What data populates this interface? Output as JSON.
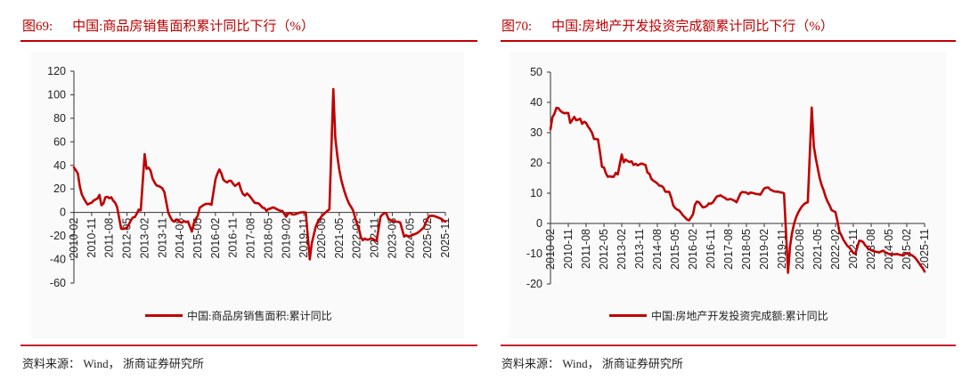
{
  "figures": [
    {
      "number": "图69:",
      "title": "中国:商品房销售面积累计同比下行（%）",
      "legend": "中国:商品房销售面积:累计同比",
      "source": "资料来源：  Wind，  浙商证券研究所"
    },
    {
      "number": "图70:",
      "title": "中国:房地产开发投资完成额累计同比下行（%）",
      "legend": "中国:房地产开发投资完成额:累计同比",
      "source": "资料来源：  Wind，  浙商证券研究所"
    }
  ],
  "colors": {
    "accent": "#c00000",
    "line": "#c00000",
    "axis": "#333333",
    "panel": "#fafafa"
  },
  "chart_data": [
    {
      "type": "line",
      "title": "中国:商品房销售面积累计同比下行（%）",
      "xlabel": "",
      "ylabel": "%",
      "ylim": [
        -60,
        120
      ],
      "yticks": [
        120,
        100,
        80,
        60,
        40,
        20,
        0,
        -20,
        -40,
        -60
      ],
      "grid": false,
      "legend_position": "bottom",
      "categories": [
        "2010-02",
        "2010-11",
        "2011-08",
        "2012-05",
        "2013-02",
        "2013-11",
        "2014-08",
        "2015-05",
        "2016-02",
        "2016-11",
        "2017-08",
        "2018-05",
        "2019-02",
        "2019-11",
        "2020-08",
        "2021-05",
        "2022-02",
        "2022-11",
        "2023-08",
        "2024-05",
        "2025-02",
        "2025-11"
      ],
      "x": [
        "2010-02",
        "2010-03",
        "2010-04",
        "2010-05",
        "2010-06",
        "2010-07",
        "2010-08",
        "2010-09",
        "2010-10",
        "2010-11",
        "2010-12",
        "2011-02",
        "2011-03",
        "2011-04",
        "2011-05",
        "2011-06",
        "2011-07",
        "2011-08",
        "2011-09",
        "2011-10",
        "2011-11",
        "2011-12",
        "2012-02",
        "2012-03",
        "2012-04",
        "2012-05",
        "2012-06",
        "2012-07",
        "2012-08",
        "2012-09",
        "2012-10",
        "2012-11",
        "2012-12",
        "2013-02",
        "2013-03",
        "2013-04",
        "2013-05",
        "2013-06",
        "2013-07",
        "2013-08",
        "2013-09",
        "2013-10",
        "2013-11",
        "2013-12",
        "2014-02",
        "2014-03",
        "2014-04",
        "2014-05",
        "2014-06",
        "2014-07",
        "2014-08",
        "2014-09",
        "2014-10",
        "2014-11",
        "2014-12",
        "2015-02",
        "2015-03",
        "2015-04",
        "2015-05",
        "2015-06",
        "2015-07",
        "2015-08",
        "2015-09",
        "2015-10",
        "2015-11",
        "2015-12",
        "2016-02",
        "2016-03",
        "2016-04",
        "2016-05",
        "2016-06",
        "2016-07",
        "2016-08",
        "2016-09",
        "2016-10",
        "2016-11",
        "2016-12",
        "2017-02",
        "2017-03",
        "2017-04",
        "2017-05",
        "2017-06",
        "2017-07",
        "2017-08",
        "2017-09",
        "2017-10",
        "2017-11",
        "2017-12",
        "2018-02",
        "2018-03",
        "2018-04",
        "2018-05",
        "2018-06",
        "2018-07",
        "2018-08",
        "2018-09",
        "2018-10",
        "2018-11",
        "2018-12",
        "2019-02",
        "2019-03",
        "2019-04",
        "2019-05",
        "2019-06",
        "2019-07",
        "2019-08",
        "2019-09",
        "2019-10",
        "2019-11",
        "2019-12",
        "2020-02",
        "2020-03",
        "2020-04",
        "2020-05",
        "2020-06",
        "2020-07",
        "2020-08",
        "2020-09",
        "2020-10",
        "2020-11",
        "2020-12",
        "2021-02",
        "2021-03",
        "2021-04",
        "2021-05",
        "2021-06",
        "2021-07",
        "2021-08",
        "2021-09",
        "2021-10",
        "2021-11",
        "2021-12",
        "2022-02",
        "2022-03",
        "2022-04",
        "2022-05",
        "2022-06",
        "2022-07",
        "2022-08",
        "2022-09",
        "2022-10",
        "2022-11",
        "2022-12",
        "2023-02",
        "2023-03",
        "2023-04",
        "2023-05",
        "2023-06",
        "2023-07",
        "2023-08",
        "2023-09",
        "2023-10",
        "2023-11",
        "2023-12",
        "2024-02",
        "2024-03",
        "2024-04",
        "2024-05",
        "2024-06",
        "2024-07",
        "2024-08",
        "2024-09",
        "2024-10",
        "2024-11",
        "2024-12",
        "2025-02",
        "2025-03",
        "2025-04",
        "2025-05",
        "2025-06",
        "2025-07",
        "2025-08",
        "2025-09",
        "2025-10",
        "2025-11"
      ],
      "series": [
        {
          "name": "中国:商品房销售面积:累计同比",
          "values": [
            38.2,
            35.8,
            33.0,
            22.2,
            15.4,
            12.1,
            9.1,
            6.7,
            7.7,
            8.3,
            10.1,
            11.9,
            14.9,
            6.1,
            7.6,
            12.9,
            13.3,
            12.1,
            12.9,
            10.0,
            8.2,
            4.4,
            -13.8,
            -14.0,
            -13.5,
            -12.9,
            -10.0,
            -6.6,
            -4.3,
            -3.9,
            -1.0,
            2.4,
            1.8,
            49.5,
            37.1,
            38.0,
            35.6,
            28.7,
            25.5,
            23.0,
            22.4,
            21.6,
            20.5,
            17.3,
            -0.1,
            -3.8,
            -6.7,
            -7.8,
            -6.0,
            -6.7,
            -8.3,
            -8.6,
            -7.3,
            -8.2,
            -7.6,
            -16.3,
            -9.2,
            -5.4,
            -2.8,
            3.9,
            5.2,
            6.3,
            7.2,
            7.2,
            7.4,
            6.5,
            28.2,
            33.1,
            36.5,
            33.2,
            27.9,
            26.4,
            25.5,
            26.9,
            26.8,
            24.3,
            22.5,
            25.1,
            19.5,
            15.7,
            14.3,
            16.1,
            14.7,
            12.7,
            10.3,
            8.2,
            7.9,
            7.7,
            4.1,
            3.6,
            1.3,
            2.9,
            3.3,
            4.2,
            4.0,
            2.9,
            2.2,
            1.4,
            1.3,
            -3.6,
            -0.9,
            -0.3,
            -1.6,
            -1.8,
            -1.3,
            -0.6,
            -0.1,
            0.1,
            0.2,
            -0.1,
            -39.9,
            -26.3,
            -19.3,
            -12.3,
            -8.4,
            -5.8,
            -3.3,
            -1.8,
            0.0,
            1.3,
            2.6,
            104.9,
            63.8,
            48.1,
            36.3,
            27.7,
            21.5,
            15.9,
            11.3,
            7.5,
            4.8,
            1.9,
            -9.6,
            -13.8,
            -20.9,
            -23.6,
            -22.2,
            -23.1,
            -23.0,
            -22.2,
            -22.3,
            -23.3,
            -24.3,
            -3.6,
            -1.8,
            -0.4,
            -0.9,
            -5.3,
            -6.5,
            -7.1,
            -7.5,
            -7.8,
            -8.0,
            -8.5,
            -20.5,
            -19.4,
            -20.2,
            -20.3,
            -19.0,
            -18.6,
            -18.0,
            -17.1,
            -15.8,
            -14.3,
            -12.9,
            -5.1,
            -3.0,
            -2.8,
            -2.9,
            -3.5,
            -4.0,
            -4.7,
            -5.5,
            -6.8,
            -7.8
          ]
        }
      ]
    },
    {
      "type": "line",
      "title": "中国:房地产开发投资完成额累计同比下行（%）",
      "xlabel": "",
      "ylabel": "%",
      "ylim": [
        -20,
        50
      ],
      "yticks": [
        50,
        40,
        30,
        20,
        10,
        0,
        -10,
        -20
      ],
      "grid": false,
      "legend_position": "bottom",
      "categories": [
        "2010-02",
        "2010-11",
        "2011-08",
        "2012-05",
        "2013-02",
        "2013-11",
        "2014-08",
        "2015-05",
        "2016-02",
        "2016-11",
        "2017-08",
        "2018-05",
        "2019-02",
        "2019-11",
        "2020-08",
        "2021-05",
        "2022-02",
        "2022-11",
        "2023-08",
        "2024-05",
        "2025-02",
        "2025-11"
      ],
      "x": [
        "2010-02",
        "2010-03",
        "2010-04",
        "2010-05",
        "2010-06",
        "2010-07",
        "2010-08",
        "2010-09",
        "2010-10",
        "2010-11",
        "2010-12",
        "2011-02",
        "2011-03",
        "2011-04",
        "2011-05",
        "2011-06",
        "2011-07",
        "2011-08",
        "2011-09",
        "2011-10",
        "2011-11",
        "2011-12",
        "2012-02",
        "2012-03",
        "2012-04",
        "2012-05",
        "2012-06",
        "2012-07",
        "2012-08",
        "2012-09",
        "2012-10",
        "2012-11",
        "2012-12",
        "2013-02",
        "2013-03",
        "2013-04",
        "2013-05",
        "2013-06",
        "2013-07",
        "2013-08",
        "2013-09",
        "2013-10",
        "2013-11",
        "2013-12",
        "2014-02",
        "2014-03",
        "2014-04",
        "2014-05",
        "2014-06",
        "2014-07",
        "2014-08",
        "2014-09",
        "2014-10",
        "2014-11",
        "2014-12",
        "2015-02",
        "2015-03",
        "2015-04",
        "2015-05",
        "2015-06",
        "2015-07",
        "2015-08",
        "2015-09",
        "2015-10",
        "2015-11",
        "2015-12",
        "2016-02",
        "2016-03",
        "2016-04",
        "2016-05",
        "2016-06",
        "2016-07",
        "2016-08",
        "2016-09",
        "2016-10",
        "2016-11",
        "2016-12",
        "2017-02",
        "2017-03",
        "2017-04",
        "2017-05",
        "2017-06",
        "2017-07",
        "2017-08",
        "2017-09",
        "2017-10",
        "2017-11",
        "2017-12",
        "2018-02",
        "2018-03",
        "2018-04",
        "2018-05",
        "2018-06",
        "2018-07",
        "2018-08",
        "2018-09",
        "2018-10",
        "2018-11",
        "2018-12",
        "2019-02",
        "2019-03",
        "2019-04",
        "2019-05",
        "2019-06",
        "2019-07",
        "2019-08",
        "2019-09",
        "2019-10",
        "2019-11",
        "2019-12",
        "2020-02",
        "2020-03",
        "2020-04",
        "2020-05",
        "2020-06",
        "2020-07",
        "2020-08",
        "2020-09",
        "2020-10",
        "2020-11",
        "2020-12",
        "2021-02",
        "2021-03",
        "2021-04",
        "2021-05",
        "2021-06",
        "2021-07",
        "2021-08",
        "2021-09",
        "2021-10",
        "2021-11",
        "2021-12",
        "2022-02",
        "2022-03",
        "2022-04",
        "2022-05",
        "2022-06",
        "2022-07",
        "2022-08",
        "2022-09",
        "2022-10",
        "2022-11",
        "2022-12",
        "2023-02",
        "2023-03",
        "2023-04",
        "2023-05",
        "2023-06",
        "2023-07",
        "2023-08",
        "2023-09",
        "2023-10",
        "2023-11",
        "2023-12",
        "2024-02",
        "2024-03",
        "2024-04",
        "2024-05",
        "2024-06",
        "2024-07",
        "2024-08",
        "2024-09",
        "2024-10",
        "2024-11",
        "2024-12",
        "2025-02",
        "2025-03",
        "2025-04",
        "2025-05",
        "2025-06",
        "2025-07",
        "2025-08",
        "2025-09",
        "2025-10",
        "2025-11"
      ],
      "series": [
        {
          "name": "中国:房地产开发投资完成额:累计同比",
          "values": [
            31.1,
            35.1,
            36.2,
            38.2,
            38.1,
            37.2,
            36.7,
            36.4,
            36.5,
            36.5,
            33.2,
            35.2,
            34.1,
            34.3,
            34.6,
            32.9,
            33.6,
            33.2,
            32.0,
            31.1,
            29.9,
            27.9,
            27.8,
            23.5,
            18.7,
            18.5,
            16.6,
            15.4,
            15.6,
            15.4,
            15.4,
            16.7,
            16.2,
            22.8,
            20.2,
            21.1,
            20.6,
            20.3,
            20.5,
            19.3,
            19.7,
            19.2,
            19.5,
            19.8,
            19.3,
            16.8,
            16.4,
            14.7,
            14.1,
            13.7,
            13.2,
            12.5,
            12.4,
            11.9,
            10.5,
            10.4,
            8.5,
            6.0,
            5.1,
            4.6,
            4.3,
            3.5,
            2.6,
            2.0,
            1.3,
            1.0,
            3.0,
            6.2,
            7.2,
            7.0,
            6.1,
            5.3,
            5.4,
            5.8,
            6.6,
            6.5,
            6.9,
            8.9,
            9.1,
            9.3,
            8.8,
            8.5,
            7.9,
            7.9,
            8.1,
            7.8,
            7.5,
            7.0,
            9.9,
            10.4,
            10.3,
            10.2,
            9.7,
            10.2,
            10.1,
            9.9,
            9.7,
            9.7,
            9.5,
            11.6,
            11.8,
            11.9,
            11.2,
            10.9,
            10.6,
            10.5,
            10.5,
            10.3,
            10.2,
            9.9,
            -16.3,
            -7.7,
            -3.3,
            -0.3,
            1.9,
            3.4,
            4.6,
            5.6,
            6.3,
            6.8,
            7.0,
            38.3,
            25.6,
            21.6,
            18.3,
            15.0,
            12.7,
            10.9,
            8.8,
            7.2,
            6.0,
            4.4,
            3.7,
            0.7,
            -2.7,
            -4.0,
            -5.4,
            -6.4,
            -7.4,
            -8.0,
            -8.8,
            -9.8,
            -10.0,
            -5.7,
            -5.8,
            -6.2,
            -7.2,
            -7.9,
            -8.5,
            -8.8,
            -9.1,
            -9.3,
            -9.4,
            -9.6,
            -9.0,
            -9.5,
            -9.8,
            -10.1,
            -10.1,
            -10.2,
            -10.2,
            -10.1,
            -10.3,
            -10.4,
            -10.6,
            -9.8,
            -9.9,
            -10.3,
            -10.7,
            -11.2,
            -12.0,
            -12.9,
            -13.9,
            -14.7,
            -15.9
          ]
        }
      ]
    }
  ]
}
